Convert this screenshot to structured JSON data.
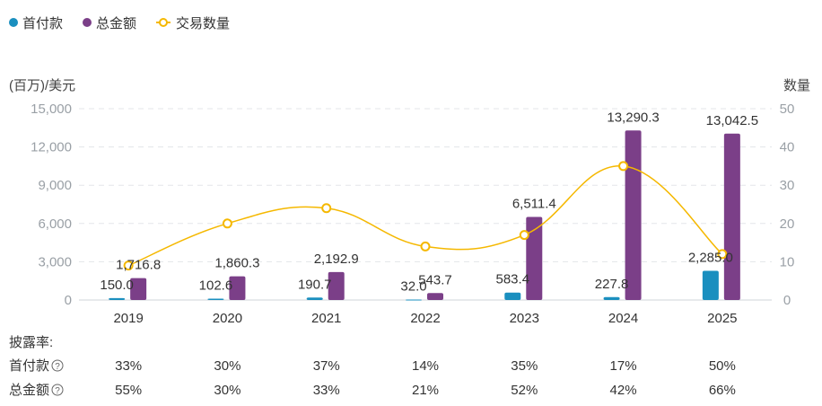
{
  "chart_data": {
    "type": "bar",
    "legend": [
      {
        "key": "down",
        "label": "首付款",
        "color": "#1a8fbf"
      },
      {
        "key": "total",
        "label": "总金额",
        "color": "#7b3f88"
      },
      {
        "key": "count",
        "label": "交易数量",
        "color": "#f5b800"
      }
    ],
    "left_axis": {
      "title": "(百万)/美元",
      "min": 0,
      "max": 15000,
      "ticks": [
        "0",
        "3,000",
        "6,000",
        "9,000",
        "12,000",
        "15,000"
      ]
    },
    "right_axis": {
      "title": "数量",
      "min": 0,
      "max": 50,
      "ticks": [
        "0",
        "10",
        "20",
        "30",
        "40",
        "50"
      ]
    },
    "categories": [
      "2019",
      "2020",
      "2021",
      "2022",
      "2023",
      "2024",
      "2025"
    ],
    "series": [
      {
        "key": "down",
        "name": "首付款",
        "values": [
          150.0,
          102.6,
          190.7,
          32.0,
          583.4,
          227.8,
          2285.0
        ],
        "labels": [
          "150.0",
          "102.6",
          "190.7",
          "32.0",
          "583.4",
          "227.8",
          "2,285.0"
        ]
      },
      {
        "key": "total",
        "name": "总金额",
        "values": [
          1716.8,
          1860.3,
          2192.9,
          543.7,
          6511.4,
          13290.3,
          13042.5
        ],
        "labels": [
          "1,716.8",
          "1,860.3",
          "2,192.9",
          "543.7",
          "6,511.4",
          "13,290.3",
          "13,042.5"
        ]
      },
      {
        "key": "count",
        "name": "交易数量",
        "values": [
          9,
          20,
          24,
          14,
          17,
          35,
          12
        ]
      }
    ],
    "grid": "horizontal dashed"
  },
  "disclosure": {
    "title": "披露率:",
    "rows": [
      {
        "label": "首付款",
        "help": "?",
        "values": [
          "33%",
          "30%",
          "37%",
          "14%",
          "35%",
          "17%",
          "50%"
        ]
      },
      {
        "label": "总金额",
        "help": "?",
        "values": [
          "55%",
          "30%",
          "33%",
          "21%",
          "52%",
          "42%",
          "66%"
        ]
      }
    ]
  }
}
